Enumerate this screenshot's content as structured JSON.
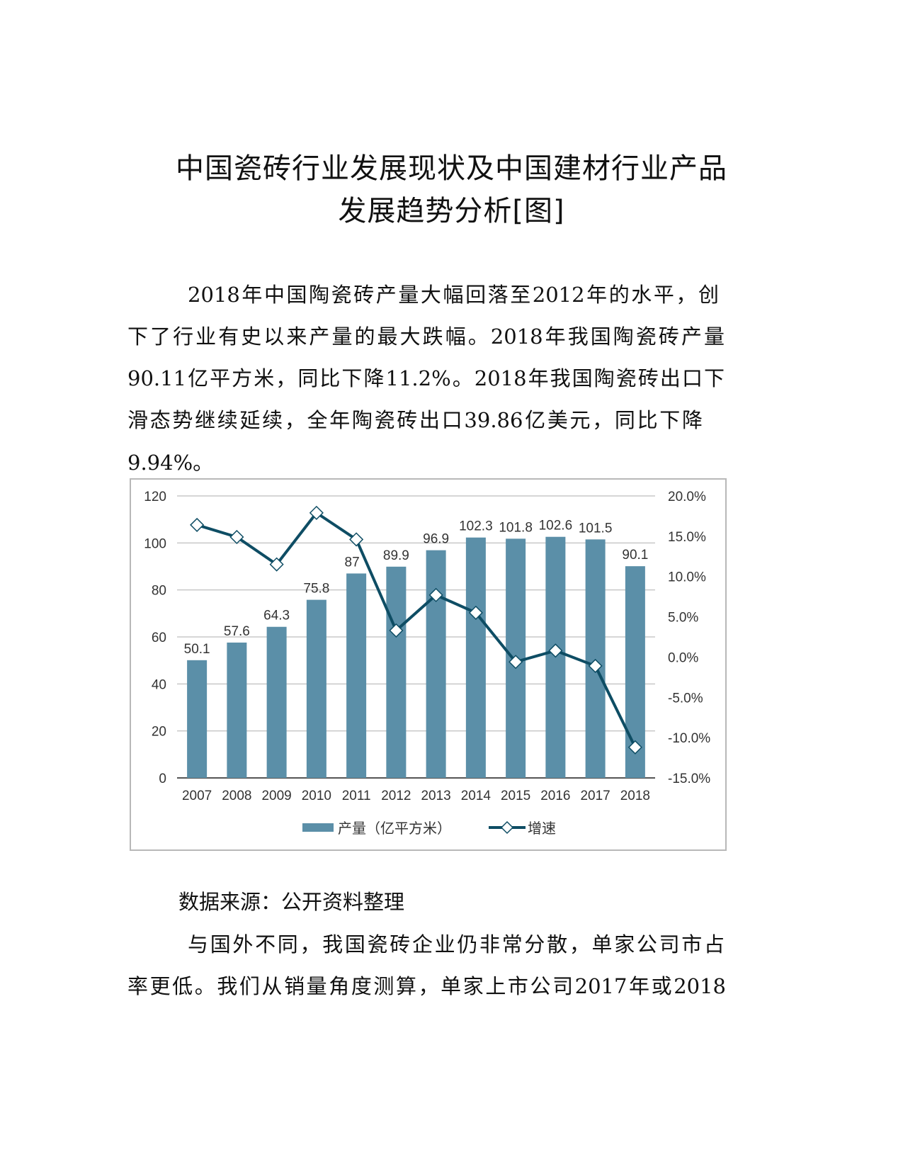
{
  "title_lines": [
    "中国瓷砖行业发展现状及中国建材行业产品",
    "发展趋势分析[图]"
  ],
  "paragraph1_lines": [
    "2018年中国陶瓷砖产量大幅回落至2012年的水平，创",
    "下了行业有史以来产量的最大跌幅。2018年我国陶瓷砖产量",
    "90.11亿平方米，同比下降11.2%。2018年我国陶瓷砖出口下",
    "滑态势继续延续，全年陶瓷砖出口39.86亿美元，同比下降",
    "9.94%。"
  ],
  "source_text": "数据来源：公开资料整理",
  "paragraph2_lines": [
    "与国外不同，我国瓷砖企业仍非常分散，单家公司市占",
    "率更低。我们从销量角度测算，单家上市公司2017年或2018"
  ],
  "chart_data": {
    "type": "bar+line",
    "categories": [
      "2007",
      "2008",
      "2009",
      "2010",
      "2011",
      "2012",
      "2013",
      "2014",
      "2015",
      "2016",
      "2017",
      "2018"
    ],
    "series": [
      {
        "name": "产量（亿平方米）",
        "type": "bar",
        "axis": "left",
        "values": [
          50.1,
          57.6,
          64.3,
          75.8,
          87,
          89.9,
          96.9,
          102.3,
          101.8,
          102.6,
          101.5,
          90.1
        ],
        "labels": [
          "50.1",
          "57.6",
          "64.3",
          "75.8",
          "87",
          "89.9",
          "96.9",
          "102.3",
          "101.8",
          "102.6",
          "101.5",
          "90.1"
        ],
        "color": "#5b8fa8"
      },
      {
        "name": "增速",
        "type": "line",
        "axis": "right",
        "marker": "diamond",
        "values": [
          16.4,
          14.9,
          11.5,
          17.9,
          14.6,
          3.3,
          7.7,
          5.5,
          -0.6,
          0.8,
          -1.1,
          -11.2
        ],
        "color": "#0e4d64"
      }
    ],
    "y_left": {
      "range": [
        0,
        120
      ],
      "ticks": [
        "0",
        "20",
        "40",
        "60",
        "80",
        "100",
        "120"
      ]
    },
    "y_right": {
      "range": [
        -15,
        20
      ],
      "ticks": [
        "-15.0%",
        "-10.0%",
        "-5.0%",
        "0.0%",
        "5.0%",
        "10.0%",
        "15.0%",
        "20.0%"
      ]
    },
    "grid": true,
    "legend": "bottom"
  }
}
